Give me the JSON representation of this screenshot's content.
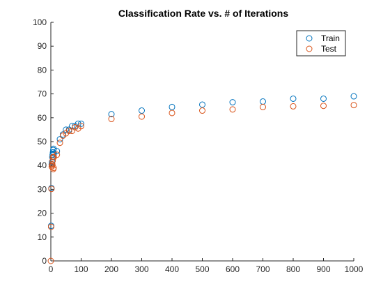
{
  "chart_data": {
    "type": "scatter",
    "title": "Classification Rate vs. # of Iterations",
    "xlabel": "",
    "ylabel": "",
    "xlim": [
      0,
      1000
    ],
    "ylim": [
      0,
      100
    ],
    "xticks": [
      0,
      100,
      200,
      300,
      400,
      500,
      600,
      700,
      800,
      900,
      1000
    ],
    "yticks": [
      0,
      10,
      20,
      30,
      40,
      50,
      60,
      70,
      80,
      90,
      100
    ],
    "grid": false,
    "legend_position": "top-right",
    "series": [
      {
        "name": "Train",
        "color": "#0072BD",
        "marker": "circle",
        "points": [
          [
            1,
            14.7
          ],
          [
            2,
            30.5
          ],
          [
            3,
            40.5
          ],
          [
            4,
            41.5
          ],
          [
            5,
            43.5
          ],
          [
            6,
            44.5
          ],
          [
            7,
            45.5
          ],
          [
            8,
            46.5
          ],
          [
            9,
            47.0
          ],
          [
            10,
            45.0
          ],
          [
            20,
            46.0
          ],
          [
            30,
            51.0
          ],
          [
            40,
            53.0
          ],
          [
            50,
            55.0
          ],
          [
            60,
            55.0
          ],
          [
            70,
            56.5
          ],
          [
            80,
            56.5
          ],
          [
            90,
            57.5
          ],
          [
            100,
            57.5
          ],
          [
            200,
            61.5
          ],
          [
            300,
            63.0
          ],
          [
            400,
            64.5
          ],
          [
            500,
            65.5
          ],
          [
            600,
            66.5
          ],
          [
            700,
            66.8
          ],
          [
            800,
            68.0
          ],
          [
            900,
            68.0
          ],
          [
            1000,
            69.0
          ]
        ]
      },
      {
        "name": "Test",
        "color": "#D95319",
        "marker": "circle",
        "points": [
          [
            0,
            0
          ],
          [
            1,
            14.3
          ],
          [
            2,
            30.2
          ],
          [
            3,
            39.5
          ],
          [
            4,
            40.0
          ],
          [
            5,
            40.5
          ],
          [
            6,
            42.0
          ],
          [
            7,
            43.5
          ],
          [
            8,
            38.5
          ],
          [
            9,
            39.0
          ],
          [
            10,
            43.5
          ],
          [
            20,
            44.5
          ],
          [
            30,
            49.5
          ],
          [
            40,
            52.5
          ],
          [
            50,
            53.5
          ],
          [
            60,
            54.5
          ],
          [
            70,
            54.5
          ],
          [
            80,
            56.0
          ],
          [
            90,
            55.5
          ],
          [
            100,
            56.5
          ],
          [
            200,
            59.5
          ],
          [
            300,
            60.5
          ],
          [
            400,
            62.0
          ],
          [
            500,
            63.0
          ],
          [
            600,
            63.5
          ],
          [
            700,
            64.5
          ],
          [
            800,
            64.8
          ],
          [
            900,
            65.0
          ],
          [
            1000,
            65.3
          ]
        ]
      }
    ]
  }
}
